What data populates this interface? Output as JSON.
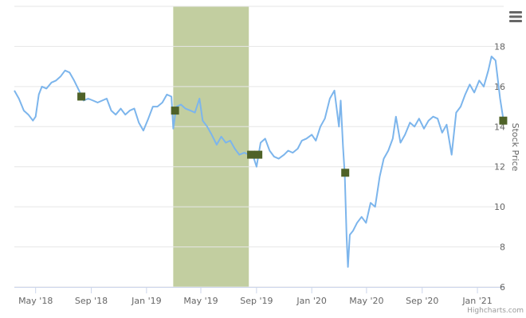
{
  "chart_data": {
    "type": "line",
    "ylabel": "Stock Price",
    "xlabel": "",
    "ylim": [
      6,
      20
    ],
    "y_ticks": [
      "6",
      "8",
      "10",
      "12",
      "14",
      "16",
      "18"
    ],
    "x_range": [
      "2018-03-15",
      "2021-02-28"
    ],
    "x_ticks": [
      {
        "date": "2018-05-01",
        "label": "May '18"
      },
      {
        "date": "2018-09-01",
        "label": "Sep '18"
      },
      {
        "date": "2019-01-01",
        "label": "Jan '19"
      },
      {
        "date": "2019-05-01",
        "label": "May '19"
      },
      {
        "date": "2019-09-01",
        "label": "Sep '19"
      },
      {
        "date": "2020-01-01",
        "label": "Jan '20"
      },
      {
        "date": "2020-05-01",
        "label": "May '20"
      },
      {
        "date": "2020-09-01",
        "label": "Sep '20"
      },
      {
        "date": "2021-01-01",
        "label": "Jan '21"
      }
    ],
    "grid": true,
    "highlight_band": {
      "from": "2019-03-01",
      "to": "2019-08-15",
      "color": "#c2cea0"
    },
    "line_color": "#7cb5ec",
    "marker_color": "#4f6228",
    "series": [
      {
        "points": [
          [
            "2018-03-15",
            15.8
          ],
          [
            "2018-03-25",
            15.4
          ],
          [
            "2018-04-05",
            14.8
          ],
          [
            "2018-04-15",
            14.6
          ],
          [
            "2018-04-25",
            14.3
          ],
          [
            "2018-05-01",
            14.5
          ],
          [
            "2018-05-08",
            15.6
          ],
          [
            "2018-05-15",
            16.0
          ],
          [
            "2018-05-25",
            15.9
          ],
          [
            "2018-06-05",
            16.2
          ],
          [
            "2018-06-15",
            16.3
          ],
          [
            "2018-06-25",
            16.5
          ],
          [
            "2018-07-05",
            16.8
          ],
          [
            "2018-07-15",
            16.7
          ],
          [
            "2018-07-25",
            16.3
          ],
          [
            "2018-08-05",
            15.8
          ],
          [
            "2018-08-15",
            15.3
          ],
          [
            "2018-08-25",
            15.4
          ],
          [
            "2018-09-05",
            15.3
          ],
          [
            "2018-09-15",
            15.2
          ],
          [
            "2018-09-25",
            15.3
          ],
          [
            "2018-10-05",
            15.4
          ],
          [
            "2018-10-15",
            14.8
          ],
          [
            "2018-10-25",
            14.6
          ],
          [
            "2018-11-05",
            14.9
          ],
          [
            "2018-11-15",
            14.6
          ],
          [
            "2018-11-25",
            14.8
          ],
          [
            "2018-12-05",
            14.9
          ],
          [
            "2018-12-15",
            14.2
          ],
          [
            "2018-12-25",
            13.8
          ],
          [
            "2019-01-05",
            14.4
          ],
          [
            "2019-01-15",
            15.0
          ],
          [
            "2019-01-25",
            15.0
          ],
          [
            "2019-02-05",
            15.2
          ],
          [
            "2019-02-15",
            15.6
          ],
          [
            "2019-02-25",
            15.5
          ],
          [
            "2019-03-01",
            13.9
          ],
          [
            "2019-03-08",
            15.0
          ],
          [
            "2019-03-18",
            15.1
          ],
          [
            "2019-03-28",
            14.9
          ],
          [
            "2019-04-08",
            14.8
          ],
          [
            "2019-04-18",
            14.7
          ],
          [
            "2019-04-28",
            15.4
          ],
          [
            "2019-05-05",
            14.3
          ],
          [
            "2019-05-15",
            14.0
          ],
          [
            "2019-05-25",
            13.6
          ],
          [
            "2019-06-05",
            13.1
          ],
          [
            "2019-06-15",
            13.5
          ],
          [
            "2019-06-25",
            13.2
          ],
          [
            "2019-07-05",
            13.3
          ],
          [
            "2019-07-15",
            12.9
          ],
          [
            "2019-07-25",
            12.6
          ],
          [
            "2019-08-05",
            12.7
          ],
          [
            "2019-08-15",
            12.6
          ],
          [
            "2019-08-25",
            12.5
          ],
          [
            "2019-09-01",
            12.0
          ],
          [
            "2019-09-10",
            13.2
          ],
          [
            "2019-09-20",
            13.4
          ],
          [
            "2019-09-30",
            12.8
          ],
          [
            "2019-10-10",
            12.5
          ],
          [
            "2019-10-20",
            12.4
          ],
          [
            "2019-11-01",
            12.6
          ],
          [
            "2019-11-10",
            12.8
          ],
          [
            "2019-11-20",
            12.7
          ],
          [
            "2019-12-01",
            12.9
          ],
          [
            "2019-12-10",
            13.3
          ],
          [
            "2019-12-20",
            13.4
          ],
          [
            "2020-01-01",
            13.6
          ],
          [
            "2020-01-10",
            13.3
          ],
          [
            "2020-01-20",
            14.0
          ],
          [
            "2020-01-30",
            14.4
          ],
          [
            "2020-02-10",
            15.4
          ],
          [
            "2020-02-20",
            15.8
          ],
          [
            "2020-03-01",
            14.0
          ],
          [
            "2020-03-05",
            15.3
          ],
          [
            "2020-03-10",
            13.0
          ],
          [
            "2020-03-14",
            11.6
          ],
          [
            "2020-03-18",
            8.5
          ],
          [
            "2020-03-21",
            7.0
          ],
          [
            "2020-03-25",
            8.6
          ],
          [
            "2020-04-01",
            8.8
          ],
          [
            "2020-04-10",
            9.2
          ],
          [
            "2020-04-20",
            9.5
          ],
          [
            "2020-04-30",
            9.2
          ],
          [
            "2020-05-10",
            10.2
          ],
          [
            "2020-05-20",
            10.0
          ],
          [
            "2020-05-30",
            11.5
          ],
          [
            "2020-06-08",
            12.4
          ],
          [
            "2020-06-18",
            12.8
          ],
          [
            "2020-06-28",
            13.4
          ],
          [
            "2020-07-05",
            14.5
          ],
          [
            "2020-07-15",
            13.2
          ],
          [
            "2020-07-25",
            13.6
          ],
          [
            "2020-08-05",
            14.2
          ],
          [
            "2020-08-15",
            14.0
          ],
          [
            "2020-08-25",
            14.4
          ],
          [
            "2020-09-05",
            13.9
          ],
          [
            "2020-09-15",
            14.3
          ],
          [
            "2020-09-25",
            14.5
          ],
          [
            "2020-10-05",
            14.4
          ],
          [
            "2020-10-15",
            13.7
          ],
          [
            "2020-10-25",
            14.1
          ],
          [
            "2020-11-05",
            12.6
          ],
          [
            "2020-11-15",
            14.7
          ],
          [
            "2020-11-25",
            15.0
          ],
          [
            "2020-12-05",
            15.6
          ],
          [
            "2020-12-15",
            16.1
          ],
          [
            "2020-12-25",
            15.7
          ],
          [
            "2021-01-05",
            16.3
          ],
          [
            "2021-01-15",
            16.0
          ],
          [
            "2021-01-25",
            16.8
          ],
          [
            "2021-02-01",
            17.5
          ],
          [
            "2021-02-10",
            17.3
          ],
          [
            "2021-02-20",
            15.4
          ],
          [
            "2021-02-27",
            14.4
          ]
        ]
      }
    ],
    "markers": [
      [
        "2018-08-10",
        15.5
      ],
      [
        "2019-03-05",
        14.8
      ],
      [
        "2019-08-20",
        12.6
      ],
      [
        "2019-09-05",
        12.6
      ],
      [
        "2020-03-15",
        11.7
      ],
      [
        "2021-02-27",
        14.3
      ]
    ]
  },
  "credits": "Highcharts.com",
  "menu_icon": "hamburger-menu-icon"
}
